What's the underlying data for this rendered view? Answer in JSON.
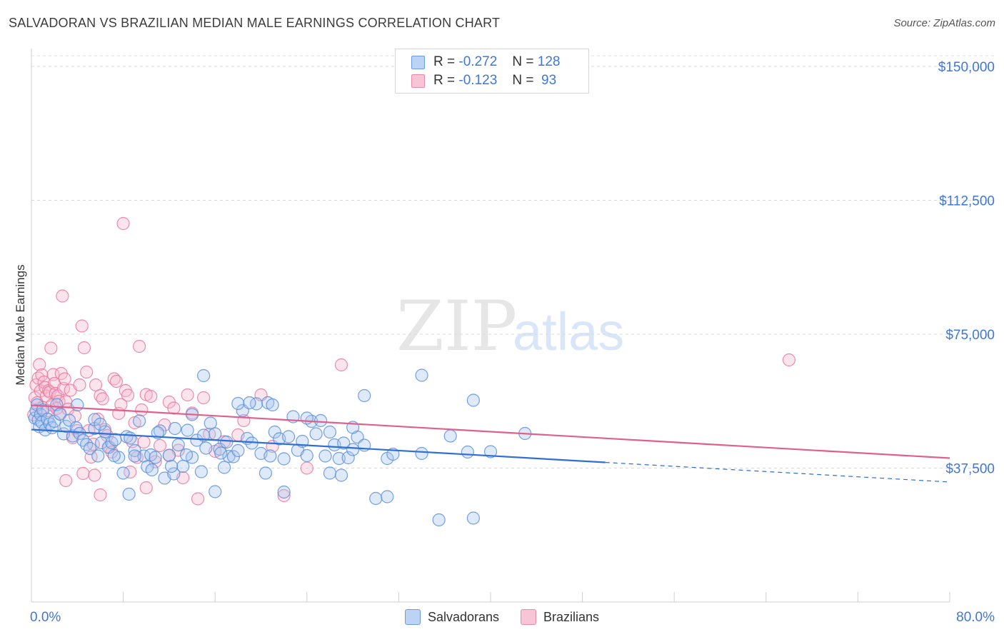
{
  "title": "SALVADORAN VS BRAZILIAN MEDIAN MALE EARNINGS CORRELATION CHART",
  "source": "Source: ZipAtlas.com",
  "watermark": {
    "zip": "ZIP",
    "atlas": "atlas"
  },
  "legend": {
    "rows": [
      {
        "r_label": "R =",
        "r_value": "-0.272",
        "n_label": "N =",
        "n_value": "128"
      },
      {
        "r_label": "R =",
        "r_value": "-0.123",
        "n_label": "N =",
        "n_value": " 93"
      }
    ]
  },
  "bottom_legend": {
    "salvadorans": "Salvadorans",
    "brazilians": "Brazilians"
  },
  "colors": {
    "blue_fill": "#a9c6ef",
    "blue_stroke": "#5b8fdc",
    "blue_line": "#2f6fd6",
    "pink_fill": "#f6b9cc",
    "pink_stroke": "#e8799d",
    "pink_line": "#e0608c",
    "tick_label": "#3f77d8"
  },
  "chart_data": {
    "type": "scatter",
    "title": "SALVADORAN VS BRAZILIAN MEDIAN MALE EARNINGS CORRELATION CHART",
    "xlabel": "",
    "ylabel": "Median Male Earnings",
    "xlim": [
      0,
      80
    ],
    "ylim": [
      0,
      153000
    ],
    "x_tick_labels": [
      "0.0%",
      "80.0%"
    ],
    "y_ticks": [
      {
        "value": 37500,
        "label": "$37,500"
      },
      {
        "value": 75000,
        "label": "$75,000"
      },
      {
        "value": 112500,
        "label": "$112,500"
      },
      {
        "value": 150000,
        "label": "$150,000"
      }
    ],
    "series": [
      {
        "name": "Salvadorans",
        "color": "blue",
        "r": -0.272,
        "n": 128,
        "trend": {
          "x0": 0,
          "y0": 48300,
          "x1": 50,
          "y1": 39100,
          "dash_x1": 80,
          "dash_y1": 33600
        },
        "points": [
          [
            0.3,
            51500
          ],
          [
            0.4,
            53600
          ],
          [
            0.5,
            55200
          ],
          [
            0.6,
            51000
          ],
          [
            0.7,
            49100
          ],
          [
            0.8,
            52500
          ],
          [
            0.9,
            50300
          ],
          [
            1.0,
            53800
          ],
          [
            1.2,
            48200
          ],
          [
            1.4,
            51200
          ],
          [
            1.6,
            49900
          ],
          [
            1.8,
            48800
          ],
          [
            2.0,
            50600
          ],
          [
            2.2,
            55300
          ],
          [
            2.5,
            52600
          ],
          [
            2.8,
            47100
          ],
          [
            3.0,
            49200
          ],
          [
            3.3,
            50900
          ],
          [
            3.6,
            46500
          ],
          [
            3.9,
            48800
          ],
          [
            4.2,
            47200
          ],
          [
            4.5,
            45300
          ],
          [
            4.8,
            44100
          ],
          [
            5.1,
            43000
          ],
          [
            5.5,
            48600
          ],
          [
            5.8,
            40900
          ],
          [
            6.1,
            44600
          ],
          [
            6.4,
            47700
          ],
          [
            6.7,
            43300
          ],
          [
            7.0,
            44600
          ],
          [
            7.3,
            45500
          ],
          [
            7.6,
            40500
          ],
          [
            8.0,
            36100
          ],
          [
            8.3,
            46300
          ],
          [
            8.6,
            45900
          ],
          [
            9.0,
            42400
          ],
          [
            9.4,
            50700
          ],
          [
            9.8,
            40900
          ],
          [
            10.1,
            37900
          ],
          [
            10.4,
            41200
          ],
          [
            10.8,
            40500
          ],
          [
            11.2,
            47900
          ],
          [
            11.6,
            34700
          ],
          [
            12.0,
            41100
          ],
          [
            12.4,
            35900
          ],
          [
            12.8,
            44000
          ],
          [
            13.2,
            38000
          ],
          [
            13.6,
            48100
          ],
          [
            14.0,
            40500
          ],
          [
            14.4,
            45300
          ],
          [
            14.8,
            36500
          ],
          [
            15.2,
            43100
          ],
          [
            15.6,
            50100
          ],
          [
            16.0,
            30900
          ],
          [
            16.4,
            42800
          ],
          [
            16.8,
            37700
          ],
          [
            17.2,
            40800
          ],
          [
            17.6,
            40700
          ],
          [
            18.0,
            42400
          ],
          [
            18.4,
            53600
          ],
          [
            18.8,
            45800
          ],
          [
            19.2,
            44500
          ],
          [
            19.6,
            55500
          ],
          [
            20.0,
            41600
          ],
          [
            20.4,
            36100
          ],
          [
            20.8,
            40900
          ],
          [
            21.2,
            47600
          ],
          [
            21.6,
            45700
          ],
          [
            22.0,
            40100
          ],
          [
            22.4,
            46300
          ],
          [
            22.8,
            51900
          ],
          [
            23.2,
            42500
          ],
          [
            23.6,
            45000
          ],
          [
            24.0,
            41000
          ],
          [
            24.4,
            50600
          ],
          [
            24.8,
            47100
          ],
          [
            25.2,
            50800
          ],
          [
            25.6,
            40900
          ],
          [
            26.0,
            36100
          ],
          [
            26.4,
            44000
          ],
          [
            26.8,
            40200
          ],
          [
            27.2,
            44500
          ],
          [
            27.6,
            40400
          ],
          [
            28.0,
            42700
          ],
          [
            28.4,
            46200
          ],
          [
            29.0,
            43900
          ],
          [
            30.0,
            29000
          ],
          [
            31.0,
            40200
          ],
          [
            31.5,
            41400
          ],
          [
            34.0,
            41600
          ],
          [
            35.5,
            23000
          ],
          [
            36.5,
            46500
          ],
          [
            38.0,
            42000
          ],
          [
            38.5,
            23500
          ],
          [
            40.0,
            42100
          ],
          [
            43.0,
            47200
          ],
          [
            4.0,
            55200
          ],
          [
            5.5,
            51100
          ],
          [
            7.2,
            41000
          ],
          [
            9.0,
            40900
          ],
          [
            11.0,
            47400
          ],
          [
            12.2,
            38000
          ],
          [
            14.0,
            52500
          ],
          [
            15.0,
            63400
          ],
          [
            16.5,
            41700
          ],
          [
            18.0,
            55600
          ],
          [
            19.0,
            55800
          ],
          [
            20.6,
            55800
          ],
          [
            8.5,
            30200
          ],
          [
            12.5,
            48600
          ],
          [
            16.0,
            47100
          ],
          [
            21.0,
            55200
          ],
          [
            22.0,
            30800
          ],
          [
            29.0,
            57800
          ],
          [
            34.0,
            63500
          ],
          [
            38.5,
            56500
          ],
          [
            27.0,
            35500
          ],
          [
            6.0,
            49800
          ],
          [
            10.5,
            37000
          ],
          [
            13.5,
            41200
          ],
          [
            17.0,
            44800
          ],
          [
            24.0,
            51500
          ],
          [
            26.0,
            47600
          ],
          [
            28.0,
            48900
          ],
          [
            31.0,
            29500
          ],
          [
            15.0,
            46700
          ]
        ]
      },
      {
        "name": "Brazilians",
        "color": "pink",
        "r": -0.123,
        "n": 93,
        "trend": {
          "x0": 0,
          "y0": 55100,
          "x1": 80,
          "y1": 40300
        },
        "points": [
          [
            0.2,
            52400
          ],
          [
            0.3,
            57200
          ],
          [
            0.4,
            60800
          ],
          [
            0.5,
            55800
          ],
          [
            0.6,
            62700
          ],
          [
            0.7,
            66500
          ],
          [
            0.8,
            59100
          ],
          [
            0.9,
            63600
          ],
          [
            1.0,
            54400
          ],
          [
            1.1,
            61600
          ],
          [
            1.2,
            60100
          ],
          [
            1.3,
            57700
          ],
          [
            1.4,
            53600
          ],
          [
            1.5,
            59200
          ],
          [
            1.6,
            58800
          ],
          [
            1.7,
            71100
          ],
          [
            1.8,
            55200
          ],
          [
            1.9,
            63700
          ],
          [
            2.0,
            61200
          ],
          [
            2.1,
            58400
          ],
          [
            2.2,
            54200
          ],
          [
            2.3,
            57700
          ],
          [
            2.4,
            56200
          ],
          [
            2.5,
            52800
          ],
          [
            2.6,
            64000
          ],
          [
            2.7,
            85700
          ],
          [
            2.8,
            59800
          ],
          [
            2.9,
            62500
          ],
          [
            3.0,
            56100
          ],
          [
            3.2,
            54000
          ],
          [
            3.4,
            59300
          ],
          [
            3.6,
            46000
          ],
          [
            3.8,
            52100
          ],
          [
            4.0,
            48000
          ],
          [
            4.2,
            60800
          ],
          [
            4.4,
            77300
          ],
          [
            4.6,
            71200
          ],
          [
            4.8,
            64400
          ],
          [
            5.0,
            48000
          ],
          [
            5.2,
            40600
          ],
          [
            5.4,
            44200
          ],
          [
            5.6,
            60800
          ],
          [
            5.8,
            51200
          ],
          [
            6.0,
            57800
          ],
          [
            6.2,
            56900
          ],
          [
            6.4,
            48300
          ],
          [
            6.6,
            46600
          ],
          [
            6.8,
            43400
          ],
          [
            7.0,
            42000
          ],
          [
            7.2,
            62500
          ],
          [
            7.4,
            61800
          ],
          [
            7.6,
            52800
          ],
          [
            7.8,
            55300
          ],
          [
            8.0,
            106000
          ],
          [
            8.2,
            59200
          ],
          [
            8.4,
            57900
          ],
          [
            8.6,
            36400
          ],
          [
            8.8,
            44900
          ],
          [
            9.0,
            50200
          ],
          [
            9.2,
            40500
          ],
          [
            9.4,
            71600
          ],
          [
            9.6,
            53800
          ],
          [
            9.8,
            44800
          ],
          [
            10.0,
            58100
          ],
          [
            10.4,
            57600
          ],
          [
            10.8,
            39300
          ],
          [
            11.2,
            43800
          ],
          [
            11.6,
            49600
          ],
          [
            12.0,
            56000
          ],
          [
            12.4,
            54300
          ],
          [
            12.8,
            42500
          ],
          [
            13.2,
            34800
          ],
          [
            13.6,
            58000
          ],
          [
            14.0,
            52900
          ],
          [
            14.5,
            28900
          ],
          [
            15.0,
            57200
          ],
          [
            15.5,
            47000
          ],
          [
            16.0,
            42200
          ],
          [
            16.8,
            44900
          ],
          [
            18.0,
            46800
          ],
          [
            18.5,
            50800
          ],
          [
            20.0,
            58000
          ],
          [
            21.0,
            43600
          ],
          [
            22.0,
            29800
          ],
          [
            24.0,
            37500
          ],
          [
            27.0,
            66400
          ],
          [
            66.0,
            67800
          ],
          [
            4.5,
            36000
          ],
          [
            6.0,
            30000
          ],
          [
            3.0,
            34000
          ],
          [
            10.0,
            32000
          ],
          [
            5.5,
            35500
          ],
          [
            12.0,
            41000
          ]
        ]
      }
    ]
  }
}
